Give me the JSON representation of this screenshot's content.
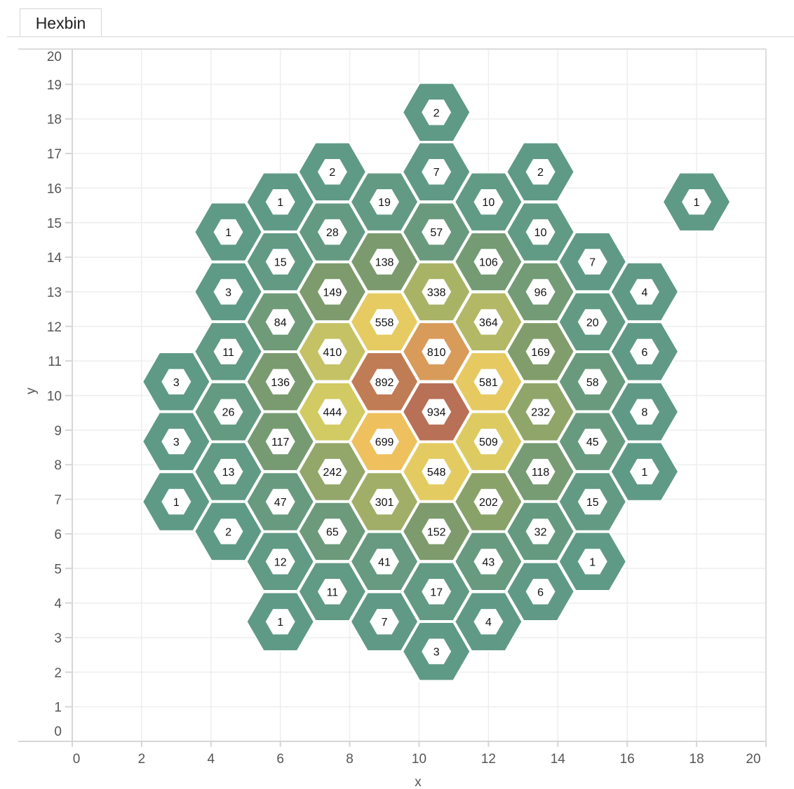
{
  "tabs": [
    {
      "label": "Hexbin",
      "active": true
    }
  ],
  "chart_data": {
    "type": "hexbin",
    "title": "",
    "xlabel": "x",
    "ylabel": "y",
    "xlim": [
      0,
      20
    ],
    "ylim": [
      0,
      20
    ],
    "xticks": [
      0,
      2,
      4,
      6,
      8,
      10,
      12,
      14,
      16,
      18,
      20
    ],
    "yticks": [
      0,
      1,
      2,
      3,
      4,
      5,
      6,
      7,
      8,
      9,
      10,
      11,
      12,
      13,
      14,
      15,
      16,
      17,
      18,
      19,
      20
    ],
    "grid": true,
    "hex_radius": 1,
    "color_scale": [
      [
        1,
        "#5f9a87"
      ],
      [
        150,
        "#7d9b6c"
      ],
      [
        340,
        "#a9b366"
      ],
      [
        450,
        "#d4cb63"
      ],
      [
        560,
        "#e5cb61"
      ],
      [
        700,
        "#eec05e"
      ],
      [
        810,
        "#d89b5a"
      ],
      [
        892,
        "#c07c55"
      ],
      [
        934,
        "#b87057"
      ]
    ],
    "bins": [
      [
        10.5,
        18.19,
        2
      ],
      [
        7.5,
        16.47,
        2
      ],
      [
        10.5,
        16.47,
        7
      ],
      [
        13.5,
        16.47,
        2
      ],
      [
        6,
        15.6,
        1
      ],
      [
        9,
        15.6,
        19
      ],
      [
        12,
        15.6,
        10
      ],
      [
        18,
        15.6,
        1
      ],
      [
        4.5,
        14.73,
        1
      ],
      [
        7.5,
        14.73,
        28
      ],
      [
        10.5,
        14.73,
        57
      ],
      [
        13.5,
        14.73,
        10
      ],
      [
        6,
        13.87,
        15
      ],
      [
        9,
        13.87,
        138
      ],
      [
        12,
        13.87,
        106
      ],
      [
        15,
        13.87,
        7
      ],
      [
        4.5,
        13.0,
        3
      ],
      [
        7.5,
        13.0,
        149
      ],
      [
        10.5,
        13.0,
        338
      ],
      [
        13.5,
        13.0,
        96
      ],
      [
        16.5,
        13.0,
        4
      ],
      [
        6,
        12.13,
        84
      ],
      [
        9,
        12.13,
        558
      ],
      [
        12,
        12.13,
        364
      ],
      [
        15,
        12.13,
        20
      ],
      [
        4.5,
        11.27,
        11
      ],
      [
        7.5,
        11.27,
        410
      ],
      [
        10.5,
        11.27,
        810
      ],
      [
        13.5,
        11.27,
        169
      ],
      [
        16.5,
        11.27,
        6
      ],
      [
        3,
        10.4,
        3
      ],
      [
        6,
        10.4,
        136
      ],
      [
        9,
        10.4,
        892
      ],
      [
        12,
        10.4,
        581
      ],
      [
        15,
        10.4,
        58
      ],
      [
        4.5,
        9.53,
        26
      ],
      [
        7.5,
        9.53,
        444
      ],
      [
        10.5,
        9.53,
        934
      ],
      [
        13.5,
        9.53,
        232
      ],
      [
        16.5,
        9.53,
        8
      ],
      [
        3,
        8.67,
        3
      ],
      [
        6,
        8.67,
        117
      ],
      [
        9,
        8.67,
        699
      ],
      [
        12,
        8.67,
        509
      ],
      [
        15,
        8.67,
        45
      ],
      [
        4.5,
        7.8,
        13
      ],
      [
        7.5,
        7.8,
        242
      ],
      [
        10.5,
        7.8,
        548
      ],
      [
        13.5,
        7.8,
        118
      ],
      [
        16.5,
        7.8,
        1
      ],
      [
        3,
        6.93,
        1
      ],
      [
        6,
        6.93,
        47
      ],
      [
        9,
        6.93,
        301
      ],
      [
        12,
        6.93,
        202
      ],
      [
        15,
        6.93,
        15
      ],
      [
        4.5,
        6.07,
        2
      ],
      [
        7.5,
        6.07,
        65
      ],
      [
        10.5,
        6.07,
        152
      ],
      [
        13.5,
        6.07,
        32
      ],
      [
        6,
        5.2,
        12
      ],
      [
        9,
        5.2,
        41
      ],
      [
        12,
        5.2,
        43
      ],
      [
        15,
        5.2,
        1
      ],
      [
        7.5,
        4.33,
        11
      ],
      [
        10.5,
        4.33,
        17
      ],
      [
        13.5,
        4.33,
        6
      ],
      [
        6,
        3.46,
        1
      ],
      [
        9,
        3.46,
        7
      ],
      [
        12,
        3.46,
        4
      ],
      [
        10.5,
        2.6,
        3
      ]
    ]
  }
}
